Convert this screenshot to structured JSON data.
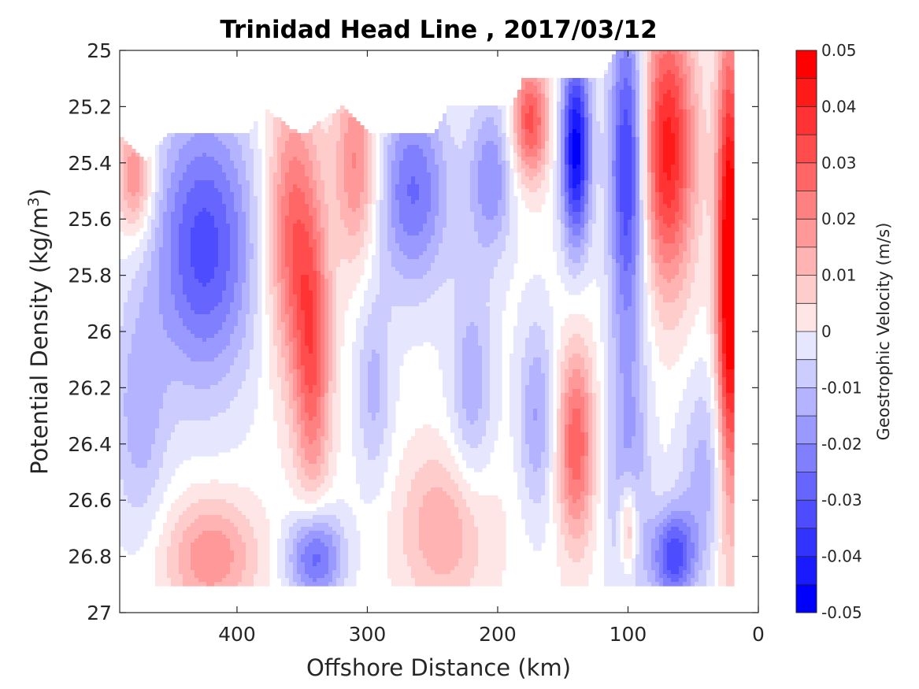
{
  "chart_data": {
    "type": "heatmap",
    "title": "Trinidad Head Line , 2017/03/12",
    "xlabel": "Offshore Distance (km)",
    "ylabel_main": "Potential Density (kg/m",
    "ylabel_sup": "3",
    "ylabel_close": ")",
    "xlim": [
      490,
      0
    ],
    "ylim": [
      25,
      27
    ],
    "x_reversed": true,
    "y_reversed": true,
    "xticks": [
      400,
      300,
      200,
      100,
      0
    ],
    "xtick_labels": [
      "400",
      "300",
      "200",
      "100",
      "0"
    ],
    "yticks": [
      25,
      25.2,
      25.4,
      25.6,
      25.8,
      26,
      26.2,
      26.4,
      26.6,
      26.8,
      27
    ],
    "ytick_labels": [
      "25",
      "25.2",
      "25.4",
      "25.6",
      "25.8",
      "26",
      "26.2",
      "26.4",
      "26.6",
      "26.8",
      "27"
    ],
    "colorbar": {
      "label": "Geostrophic Velocity (m/s)",
      "range": [
        -0.05,
        0.05
      ],
      "tick_values": [
        0.05,
        0.04,
        0.03,
        0.02,
        0.01,
        0,
        -0.01,
        -0.02,
        -0.03,
        -0.04,
        -0.05
      ],
      "tick_labels": [
        "0.05",
        "0.04",
        "0.03",
        "0.02",
        "0.01",
        "0",
        "-0.01",
        "-0.02",
        "-0.03",
        "-0.04",
        "-0.05"
      ],
      "levels": 20,
      "colors": [
        "#0000ff",
        "#1a1aff",
        "#3333ff",
        "#4d4dff",
        "#6666ff",
        "#8080ff",
        "#9999ff",
        "#b3b3ff",
        "#ccccff",
        "#e6e6ff",
        "#ffffff",
        "#ffe6e6",
        "#ffcccc",
        "#ffb3b3",
        "#ff9999",
        "#ff8080",
        "#ff6666",
        "#ff4d4d",
        "#ff3333",
        "#ff1a1a",
        "#ff0000"
      ]
    },
    "field": {
      "x_min": 20,
      "x_max": 490,
      "y_max": 26.9,
      "surface_density": [
        [
          490,
          25.3
        ],
        [
          470,
          25.4
        ],
        [
          455,
          25.3
        ],
        [
          390,
          25.3
        ],
        [
          382,
          25.2
        ],
        [
          350,
          25.3
        ],
        [
          320,
          25.2
        ],
        [
          295,
          25.3
        ],
        [
          250,
          25.3
        ],
        [
          238,
          25.2
        ],
        [
          190,
          25.2
        ],
        [
          180,
          25.1
        ],
        [
          120,
          25.1
        ],
        [
          110,
          25.0
        ],
        [
          20,
          25.0
        ]
      ],
      "features": [
        {
          "x": 478,
          "y": 25.45,
          "sx": 10,
          "sy": 0.15,
          "v": 0.025
        },
        {
          "x": 425,
          "y": 25.7,
          "sx": 28,
          "sy": 0.35,
          "v": -0.035
        },
        {
          "x": 475,
          "y": 26.3,
          "sx": 15,
          "sy": 0.3,
          "v": -0.015
        },
        {
          "x": 420,
          "y": 26.8,
          "sx": 25,
          "sy": 0.15,
          "v": 0.022
        },
        {
          "x": 358,
          "y": 25.65,
          "sx": 14,
          "sy": 0.35,
          "v": 0.03
        },
        {
          "x": 342,
          "y": 26.1,
          "sx": 10,
          "sy": 0.35,
          "v": 0.03
        },
        {
          "x": 340,
          "y": 26.8,
          "sx": 15,
          "sy": 0.12,
          "v": -0.032
        },
        {
          "x": 308,
          "y": 25.4,
          "sx": 12,
          "sy": 0.25,
          "v": 0.025
        },
        {
          "x": 295,
          "y": 26.2,
          "sx": 10,
          "sy": 0.25,
          "v": -0.014
        },
        {
          "x": 265,
          "y": 25.5,
          "sx": 20,
          "sy": 0.25,
          "v": -0.028
        },
        {
          "x": 240,
          "y": 26.7,
          "sx": 25,
          "sy": 0.2,
          "v": 0.018
        },
        {
          "x": 220,
          "y": 26.2,
          "sx": 12,
          "sy": 0.3,
          "v": -0.016
        },
        {
          "x": 205,
          "y": 25.45,
          "sx": 12,
          "sy": 0.2,
          "v": -0.022
        },
        {
          "x": 175,
          "y": 25.25,
          "sx": 10,
          "sy": 0.15,
          "v": 0.035
        },
        {
          "x": 170,
          "y": 26.3,
          "sx": 10,
          "sy": 0.25,
          "v": -0.018
        },
        {
          "x": 140,
          "y": 25.35,
          "sx": 8,
          "sy": 0.25,
          "v": -0.05
        },
        {
          "x": 140,
          "y": 26.4,
          "sx": 10,
          "sy": 0.25,
          "v": 0.032
        },
        {
          "x": 100,
          "y": 25.4,
          "sx": 10,
          "sy": 0.4,
          "v": -0.042
        },
        {
          "x": 100,
          "y": 26.5,
          "sx": 12,
          "sy": 0.4,
          "v": -0.018
        },
        {
          "x": 100,
          "y": 26.7,
          "sx": 5,
          "sy": 0.12,
          "v": 0.025
        },
        {
          "x": 70,
          "y": 25.35,
          "sx": 15,
          "sy": 0.35,
          "v": 0.045
        },
        {
          "x": 65,
          "y": 26.8,
          "sx": 12,
          "sy": 0.12,
          "v": -0.035
        },
        {
          "x": 40,
          "y": 26.5,
          "sx": 15,
          "sy": 0.25,
          "v": -0.015
        },
        {
          "x": 22,
          "y": 25.8,
          "sx": 7,
          "sy": 0.6,
          "v": 0.06
        }
      ]
    }
  }
}
